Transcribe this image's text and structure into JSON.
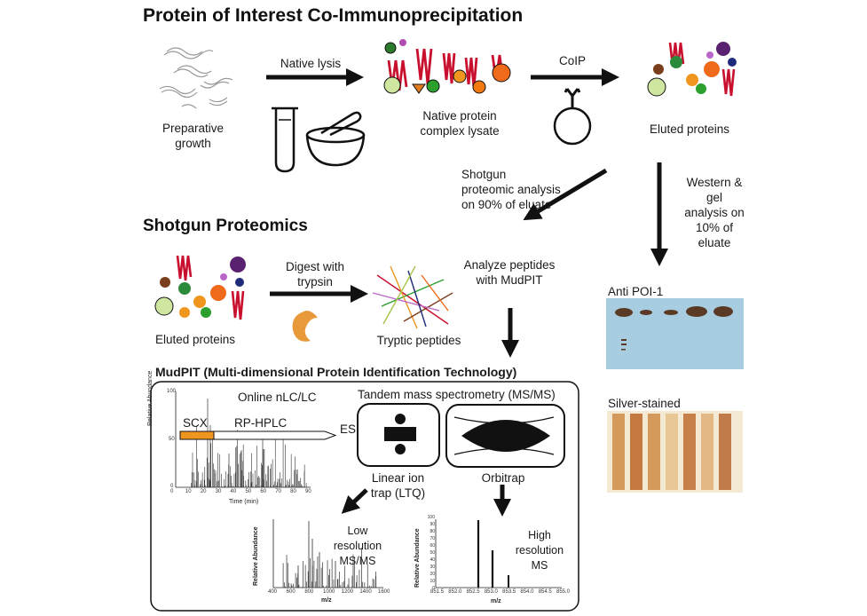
{
  "titles": {
    "coip": "Protein of Interest Co-Immunoprecipitation",
    "shotgun": "Shotgun Proteomics",
    "mudpit": "MudPIT (Multi-dimensional Protein Identification Technology)"
  },
  "labels": {
    "preparative": "Preparative growth",
    "native_lysis": "Native lysis",
    "native_lysate": "Native protein complex lysate",
    "coip": "CoIP",
    "eluted_top": "Eluted proteins",
    "shotgun_analysis": "Shotgun proteomic analysis on 90% of eluate",
    "western": "Western & gel analysis on 10% of eluate",
    "eluted_mid": "Eluted proteins",
    "digest": "Digest with trypsin",
    "tryptic": "Tryptic peptides",
    "analyze": "Analyze peptides with MudPIT",
    "anti_poi": "Anti POI-1",
    "silver": "Silver-stained",
    "online_lc": "Online nLC/LC",
    "tandem": "Tandem mass spectrometry (MS/MS)",
    "scx": "SCX",
    "rphplc": "RP-HPLC",
    "esi": "ESI",
    "linear": "Linear ion trap (LTQ)",
    "orbitrap": "Orbitrap",
    "low_res": "Low resolution MS/MS",
    "high_res": "High resolution MS"
  },
  "plots": {
    "chrom": {
      "ylabel": "Relative Abundance",
      "xlabel": "Time (min)",
      "xticks": [
        "0",
        "10",
        "20",
        "30",
        "40",
        "50",
        "60",
        "70",
        "80",
        "90"
      ],
      "yticks": [
        "100",
        "50",
        "0"
      ]
    },
    "low": {
      "ylabel": "Relative Abundance",
      "xlabel": "m/z",
      "xticks": [
        "400",
        "600",
        "800",
        "1000",
        "1200",
        "1400",
        "1600"
      ]
    },
    "high": {
      "ylabel": "Relative Abundance",
      "xlabel": "m/z",
      "xticks": [
        "851.5",
        "852.0",
        "852.5",
        "853.0",
        "853.5",
        "854.0",
        "854.5",
        "855.0"
      ],
      "yticks": [
        "100",
        "90",
        "80",
        "70",
        "60",
        "50",
        "40",
        "30",
        "20",
        "10",
        "0"
      ]
    }
  },
  "colors": {
    "protein_red": "#c8102e",
    "scx_orange": "#f0961e",
    "blot_blue": "#a8cde0",
    "band_brown": "#5a3a25"
  }
}
